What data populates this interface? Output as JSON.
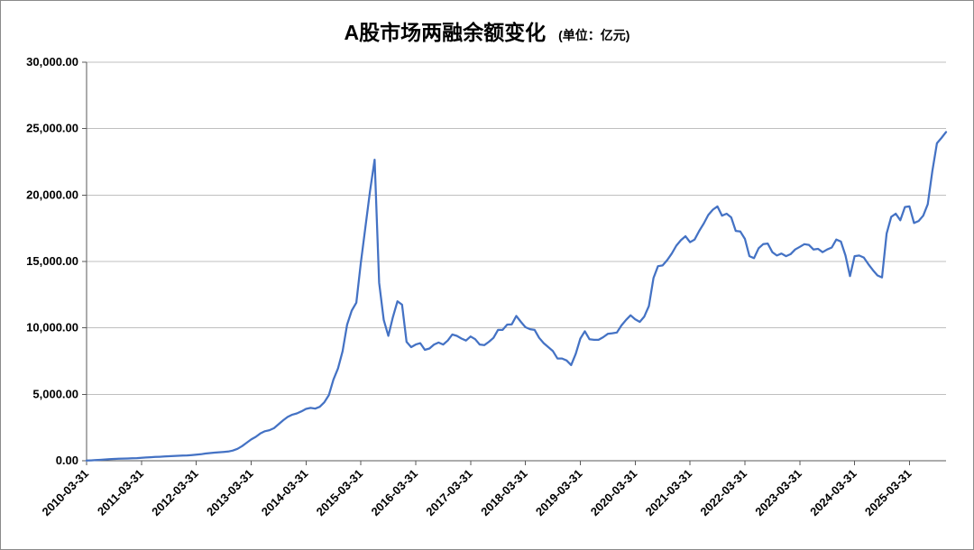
{
  "chart": {
    "title": "A股市场两融余额变化",
    "unit_label": "(单位：亿元)",
    "line_color": "#4472C4",
    "grid_color": "#BFBFBF",
    "axis_color": "#595959",
    "background": "#FFFFFF"
  },
  "chart_data": {
    "type": "line",
    "title": "A股市场两融余额变化",
    "subtitle": "(单位：亿元)",
    "xlabel": "",
    "ylabel": "",
    "ylim": [
      0,
      30000
    ],
    "grid": true,
    "legend": false,
    "y_ticks": [
      0,
      5000,
      10000,
      15000,
      20000,
      25000,
      30000
    ],
    "y_tick_labels": [
      "0.00",
      "5,000.00",
      "10,000.00",
      "15,000.00",
      "20,000.00",
      "25,000.00",
      "30,000.00"
    ],
    "x_tick_labels": [
      "2010-03-31",
      "2011-03-31",
      "2012-03-31",
      "2013-03-31",
      "2014-03-31",
      "2015-03-31",
      "2016-03-31",
      "2017-03-31",
      "2018-03-31",
      "2019-03-31",
      "2020-03-31",
      "2021-03-31",
      "2022-03-31",
      "2023-03-31",
      "2024-03-31",
      "2025-03-31"
    ],
    "x_tick_interval_months": 12,
    "series": [
      {
        "name": "两融余额",
        "x_start": "2010-03",
        "x_interval": "month",
        "x": [
          "2010-03",
          "2010-04",
          "2010-05",
          "2010-06",
          "2010-07",
          "2010-08",
          "2010-09",
          "2010-10",
          "2010-11",
          "2010-12",
          "2011-01",
          "2011-02",
          "2011-03",
          "2011-04",
          "2011-05",
          "2011-06",
          "2011-07",
          "2011-08",
          "2011-09",
          "2011-10",
          "2011-11",
          "2011-12",
          "2012-01",
          "2012-02",
          "2012-03",
          "2012-04",
          "2012-05",
          "2012-06",
          "2012-07",
          "2012-08",
          "2012-09",
          "2012-10",
          "2012-11",
          "2012-12",
          "2013-01",
          "2013-02",
          "2013-03",
          "2013-04",
          "2013-05",
          "2013-06",
          "2013-07",
          "2013-08",
          "2013-09",
          "2013-10",
          "2013-11",
          "2013-12",
          "2014-01",
          "2014-02",
          "2014-03",
          "2014-04",
          "2014-05",
          "2014-06",
          "2014-07",
          "2014-08",
          "2014-09",
          "2014-10",
          "2014-11",
          "2014-12",
          "2015-01",
          "2015-02",
          "2015-03",
          "2015-04",
          "2015-05",
          "2015-06",
          "2015-07",
          "2015-08",
          "2015-09",
          "2015-10",
          "2015-11",
          "2015-12",
          "2016-01",
          "2016-02",
          "2016-03",
          "2016-04",
          "2016-05",
          "2016-06",
          "2016-07",
          "2016-08",
          "2016-09",
          "2016-10",
          "2016-11",
          "2016-12",
          "2017-01",
          "2017-02",
          "2017-03",
          "2017-04",
          "2017-05",
          "2017-06",
          "2017-07",
          "2017-08",
          "2017-09",
          "2017-10",
          "2017-11",
          "2017-12",
          "2018-01",
          "2018-02",
          "2018-03",
          "2018-04",
          "2018-05",
          "2018-06",
          "2018-07",
          "2018-08",
          "2018-09",
          "2018-10",
          "2018-11",
          "2018-12",
          "2019-01",
          "2019-02",
          "2019-03",
          "2019-04",
          "2019-05",
          "2019-06",
          "2019-07",
          "2019-08",
          "2019-09",
          "2019-10",
          "2019-11",
          "2019-12",
          "2020-01",
          "2020-02",
          "2020-03",
          "2020-04",
          "2020-05",
          "2020-06",
          "2020-07",
          "2020-08",
          "2020-09",
          "2020-10",
          "2020-11",
          "2020-12",
          "2021-01",
          "2021-02",
          "2021-03",
          "2021-04",
          "2021-05",
          "2021-06",
          "2021-07",
          "2021-08",
          "2021-09",
          "2021-10",
          "2021-11",
          "2021-12",
          "2022-01",
          "2022-02",
          "2022-03",
          "2022-04",
          "2022-05",
          "2022-06",
          "2022-07",
          "2022-08",
          "2022-09",
          "2022-10",
          "2022-11",
          "2022-12",
          "2023-01",
          "2023-02",
          "2023-03",
          "2023-04",
          "2023-05",
          "2023-06",
          "2023-07",
          "2023-08",
          "2023-09",
          "2023-10",
          "2023-11",
          "2023-12",
          "2024-01",
          "2024-02",
          "2024-03",
          "2024-04",
          "2024-05",
          "2024-06",
          "2024-07",
          "2024-08",
          "2024-09",
          "2024-10",
          "2024-11",
          "2024-12",
          "2025-01",
          "2025-02",
          "2025-03",
          "2025-04",
          "2025-05",
          "2025-06",
          "2025-07",
          "2025-08",
          "2025-09",
          "2025-10",
          "2025-11"
        ],
        "values": [
          12,
          25,
          45,
          70,
          95,
          115,
          135,
          150,
          160,
          170,
          180,
          200,
          225,
          245,
          265,
          285,
          300,
          320,
          340,
          355,
          370,
          385,
          400,
          430,
          460,
          490,
          540,
          580,
          610,
          640,
          665,
          690,
          770,
          895,
          1100,
          1350,
          1600,
          1800,
          2050,
          2220,
          2300,
          2450,
          2750,
          3050,
          3300,
          3465,
          3560,
          3720,
          3900,
          3980,
          3920,
          4060,
          4400,
          4950,
          6100,
          6950,
          8250,
          10250,
          11300,
          11900,
          14900,
          17600,
          20300,
          22660,
          13400,
          10600,
          9400,
          10800,
          12000,
          11750,
          8950,
          8550,
          8750,
          8850,
          8350,
          8450,
          8750,
          8900,
          8750,
          9050,
          9500,
          9400,
          9200,
          9050,
          9350,
          9150,
          8750,
          8700,
          8950,
          9250,
          9850,
          9850,
          10250,
          10260,
          10900,
          10450,
          10050,
          9900,
          9850,
          9250,
          8850,
          8550,
          8250,
          7700,
          7700,
          7550,
          7200,
          8050,
          9200,
          9750,
          9150,
          9100,
          9100,
          9300,
          9550,
          9600,
          9650,
          10190,
          10600,
          10950,
          10650,
          10450,
          10850,
          11650,
          13750,
          14650,
          14700,
          15100,
          15600,
          16190,
          16600,
          16900,
          16450,
          16650,
          17300,
          17850,
          18500,
          18900,
          19150,
          18450,
          18600,
          18320,
          17300,
          17250,
          16700,
          15400,
          15250,
          16000,
          16300,
          16350,
          15700,
          15450,
          15600,
          15400,
          15550,
          15900,
          16100,
          16300,
          16250,
          15900,
          15950,
          15700,
          15900,
          16050,
          16650,
          16500,
          15450,
          13900,
          15400,
          15450,
          15300,
          14800,
          14350,
          13950,
          13800,
          17100,
          18350,
          18600,
          18100,
          19100,
          19150,
          17900,
          18050,
          18450,
          19300,
          21800,
          23900,
          24300,
          24750
        ]
      }
    ]
  }
}
